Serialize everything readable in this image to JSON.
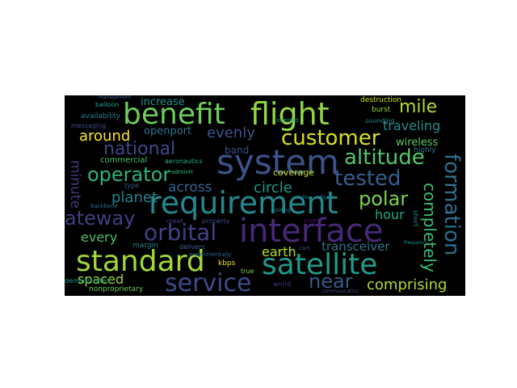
{
  "wordcloud": {
    "words": [
      {
        "text": "benefit",
        "color": "#6ccd5a"
      },
      {
        "text": "flight",
        "color": "#8fd744"
      },
      {
        "text": "mile",
        "color": "#b2dd2d"
      },
      {
        "text": "system",
        "color": "#3b528b"
      },
      {
        "text": "customer",
        "color": "#d8e219"
      },
      {
        "text": "altitude",
        "color": "#54c568"
      },
      {
        "text": "national",
        "color": "#3f4788"
      },
      {
        "text": "operator",
        "color": "#2fb47c"
      },
      {
        "text": "requirement",
        "color": "#23888e"
      },
      {
        "text": "tested",
        "color": "#355f8d"
      },
      {
        "text": "polar",
        "color": "#7ad151"
      },
      {
        "text": "formation",
        "color": "#2d708e"
      },
      {
        "text": "interface",
        "color": "#482878"
      },
      {
        "text": "orbital",
        "color": "#424086"
      },
      {
        "text": "ateway",
        "color": "#433e85"
      },
      {
        "text": "standard",
        "color": "#a0da39"
      },
      {
        "text": "satellite",
        "color": "#1f9a8a"
      },
      {
        "text": "service",
        "color": "#3e4a89"
      },
      {
        "text": "near",
        "color": "#38588c"
      },
      {
        "text": "comprising",
        "color": "#addc30"
      },
      {
        "text": "completely",
        "color": "#3dbc74"
      },
      {
        "text": "transceiver",
        "color": "#2a788e"
      },
      {
        "text": "earth",
        "color": "#b5de2b"
      },
      {
        "text": "hour",
        "color": "#22a884"
      },
      {
        "text": "circle",
        "color": "#1f968b"
      },
      {
        "text": "across",
        "color": "#31688e"
      },
      {
        "text": "planet",
        "color": "#26828e"
      },
      {
        "text": "every",
        "color": "#4ac16d"
      },
      {
        "text": "spaced",
        "color": "#9bd93c"
      },
      {
        "text": "around",
        "color": "#fde725"
      },
      {
        "text": "evenly",
        "color": "#3a548c"
      },
      {
        "text": "traveling",
        "color": "#228c8d"
      },
      {
        "text": "wireless",
        "color": "#5ec962"
      },
      {
        "text": "increase",
        "color": "#21908d"
      },
      {
        "text": "openport",
        "color": "#2c728e"
      },
      {
        "text": "minute",
        "color": "#453781"
      },
      {
        "text": "commercial",
        "color": "#48c16e"
      },
      {
        "text": "aeronautics",
        "color": "#26ad81"
      },
      {
        "text": "band",
        "color": "#3b518b"
      },
      {
        "text": "coverage",
        "color": "#c8e020"
      },
      {
        "text": "availability",
        "color": "#297b8e"
      },
      {
        "text": "messaging",
        "color": "#3e4c8a"
      },
      {
        "text": "balloon",
        "color": "#1fa187"
      },
      {
        "text": "burst",
        "color": "#95d840"
      },
      {
        "text": "destruction",
        "color": "#d2e21b"
      },
      {
        "text": "sounding",
        "color": "#26818e"
      },
      {
        "text": "highly",
        "color": "#2d718e"
      },
      {
        "text": "nonproprietary",
        "color": "#6ece58"
      },
      {
        "text": "demonstrated",
        "color": "#1e9c89"
      },
      {
        "text": "margin",
        "color": "#277f8e"
      },
      {
        "text": "kbps",
        "color": "#eae51a"
      },
      {
        "text": "true",
        "color": "#7fd34e"
      },
      {
        "text": "delivers",
        "color": "#34618d"
      },
      {
        "text": "property",
        "color": "#3f4889"
      },
      {
        "text": "meet",
        "color": "#46337f"
      },
      {
        "text": "type",
        "color": "#365d8d"
      },
      {
        "text": "world",
        "color": "#443983"
      },
      {
        "text": "experimentally",
        "color": "#32648e"
      },
      {
        "text": "backbone",
        "color": "#2e6e8e"
      },
      {
        "text": "adminfr",
        "color": "#35b779"
      },
      {
        "text": "cart",
        "color": "#404588"
      },
      {
        "text": "short",
        "color": "#25858e"
      },
      {
        "text": "piper",
        "color": "#471365"
      },
      {
        "text": "management",
        "color": "#3a548c"
      },
      {
        "text": "figure",
        "color": "#2a778e"
      },
      {
        "text": "frequency",
        "color": "#23898e"
      },
      {
        "text": "communication",
        "color": "#3c4f8a"
      },
      {
        "text": "sliding",
        "color": "#218e8d"
      },
      {
        "text": "reliable",
        "color": "#27808e"
      },
      {
        "text": "internet",
        "color": "#1fa088"
      }
    ]
  }
}
